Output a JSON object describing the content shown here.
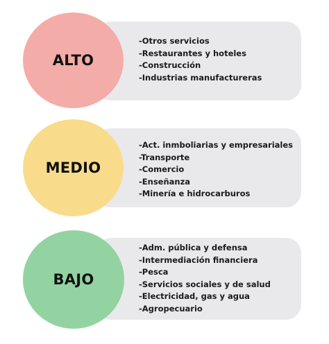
{
  "levels": [
    {
      "label": "ALTO",
      "color": "#f3aca7",
      "items": [
        "-Otros servicios",
        "-Restaurantes y hoteles",
        "-Construcción",
        "-Industrias manufactureras"
      ]
    },
    {
      "label": "MEDIO",
      "color": "#f8dc8c",
      "items": [
        "-Act. inmboliarias y empresariales",
        "-Transporte",
        "-Comercio",
        "-Enseñanza",
        "-Minería e hidrocarburos"
      ]
    },
    {
      "label": "BAJO",
      "color": "#93d3a2",
      "items": [
        "-Adm. pública y defensa",
        "-Intermediación financiera",
        "-Pesca",
        "-Servicios sociales y de salud",
        "-Electricidad, gas y agua",
        "-Agropecuario"
      ]
    }
  ],
  "panel_color": "#e9e9eb"
}
